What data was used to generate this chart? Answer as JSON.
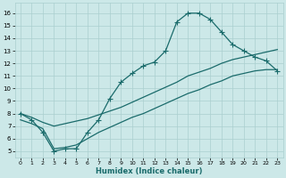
{
  "xlabel": "Humidex (Indice chaleur)",
  "xlim": [
    -0.5,
    23.5
  ],
  "ylim": [
    4.5,
    16.8
  ],
  "xticks": [
    0,
    1,
    2,
    3,
    4,
    5,
    6,
    7,
    8,
    9,
    10,
    11,
    12,
    13,
    14,
    15,
    16,
    17,
    18,
    19,
    20,
    21,
    22,
    23
  ],
  "yticks": [
    5,
    6,
    7,
    8,
    9,
    10,
    11,
    12,
    13,
    14,
    15,
    16
  ],
  "bg_color": "#cce8e8",
  "line_color": "#1a6b6b",
  "grid_color": "#aacfcf",
  "curve1_x": [
    0,
    1,
    2,
    3,
    4,
    5,
    6,
    7,
    8,
    9,
    10,
    11,
    12,
    13,
    14,
    15,
    16,
    17,
    18,
    19,
    20,
    21,
    22,
    23
  ],
  "curve1_y": [
    8.0,
    7.5,
    6.5,
    5.0,
    5.2,
    5.2,
    6.5,
    7.5,
    9.2,
    10.5,
    11.2,
    11.8,
    12.1,
    13.0,
    15.3,
    16.0,
    16.0,
    15.5,
    14.5,
    13.5,
    13.0,
    12.5,
    12.2,
    11.4
  ],
  "curve2_x": [
    0,
    1,
    2,
    3,
    4,
    5,
    6,
    7,
    8,
    9,
    10,
    11,
    12,
    13,
    14,
    15,
    16,
    17,
    18,
    19,
    20,
    21,
    22,
    23
  ],
  "curve2_y": [
    8.0,
    7.7,
    7.3,
    7.0,
    7.2,
    7.4,
    7.6,
    7.9,
    8.2,
    8.5,
    8.9,
    9.3,
    9.7,
    10.1,
    10.5,
    11.0,
    11.3,
    11.6,
    12.0,
    12.3,
    12.5,
    12.7,
    12.9,
    13.1
  ],
  "curve3_x": [
    0,
    1,
    2,
    3,
    4,
    5,
    6,
    7,
    8,
    9,
    10,
    11,
    12,
    13,
    14,
    15,
    16,
    17,
    18,
    19,
    20,
    21,
    22,
    23
  ],
  "curve3_y": [
    7.5,
    7.2,
    6.8,
    5.2,
    5.3,
    5.5,
    6.0,
    6.5,
    6.9,
    7.3,
    7.7,
    8.0,
    8.4,
    8.8,
    9.2,
    9.6,
    9.9,
    10.3,
    10.6,
    11.0,
    11.2,
    11.4,
    11.5,
    11.5
  ]
}
